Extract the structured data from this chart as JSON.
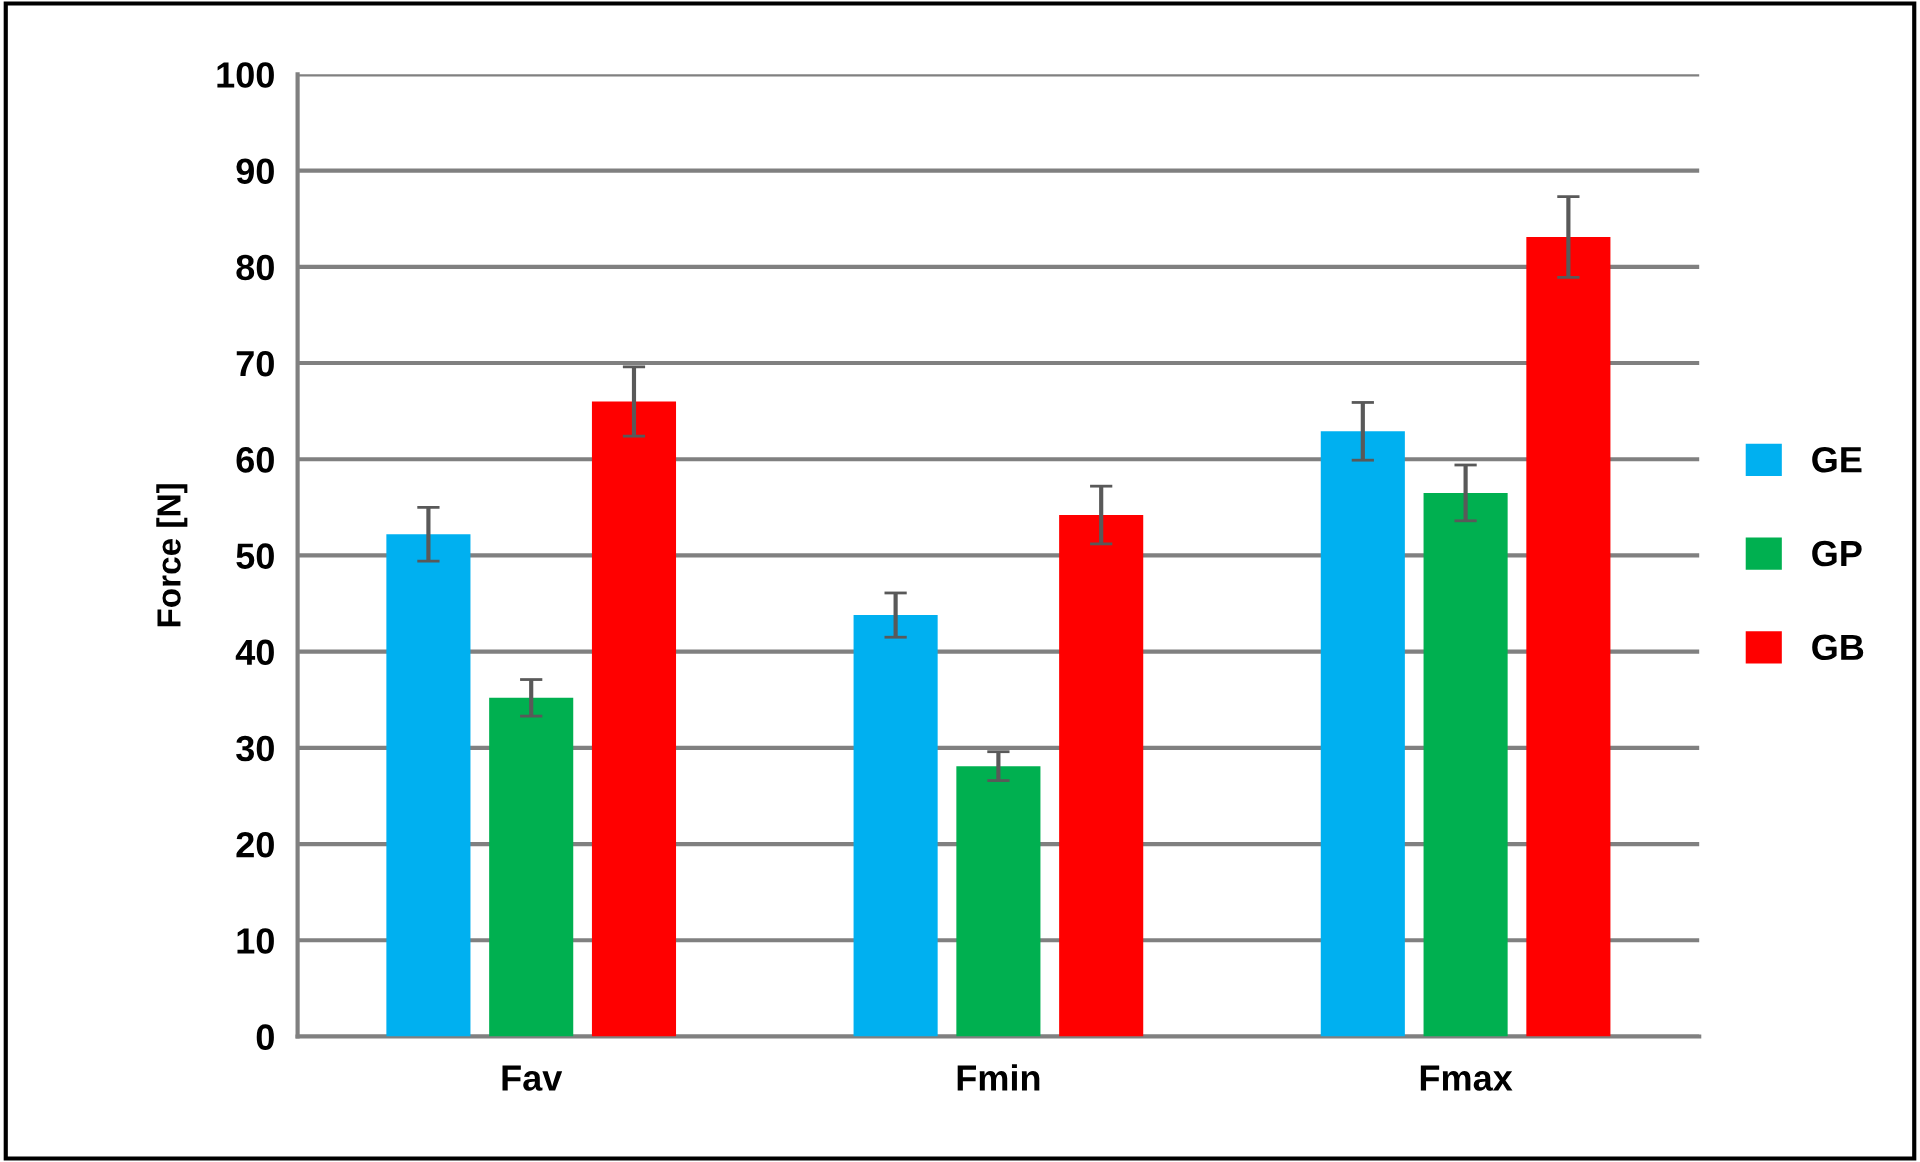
{
  "chart_data": {
    "type": "bar",
    "ylabel": "Force [N]",
    "categories": [
      "Fav",
      "Fmin",
      "Fmax"
    ],
    "series": [
      {
        "name": "GE",
        "color": "#00b0f0",
        "values": [
          52.2,
          43.8,
          62.9
        ],
        "errors": [
          2.8,
          2.3,
          3.0
        ]
      },
      {
        "name": "GP",
        "color": "#00b050",
        "values": [
          35.2,
          28.1,
          56.5
        ],
        "errors": [
          1.9,
          1.5,
          2.9
        ]
      },
      {
        "name": "GB",
        "color": "#ff0000",
        "values": [
          66.0,
          54.2,
          83.1
        ],
        "errors": [
          3.6,
          3.0,
          4.2
        ]
      }
    ],
    "ylim": [
      0,
      100
    ],
    "yticks": [
      0,
      10,
      20,
      30,
      40,
      50,
      60,
      70,
      80,
      90,
      100
    ],
    "grid": "y",
    "legend": "right"
  }
}
